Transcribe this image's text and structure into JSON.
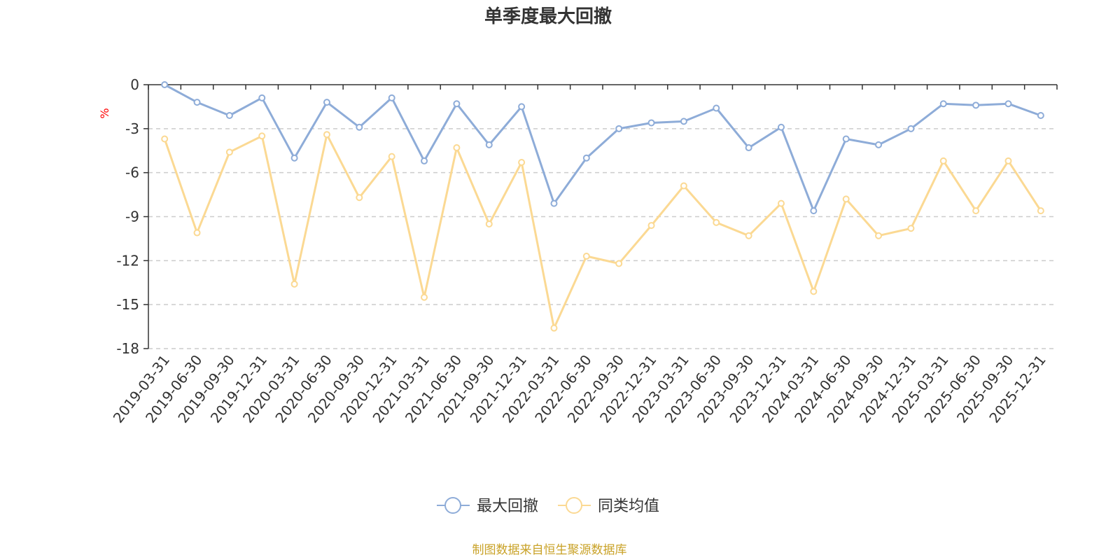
{
  "chart_data": {
    "type": "line",
    "title": "单季度最大回撤",
    "ylabel": "%",
    "xlabel": "",
    "ylim": [
      -18,
      0
    ],
    "yticks": [
      0,
      -3,
      -6,
      -9,
      -12,
      -15,
      -18
    ],
    "grid": true,
    "legend_position": "bottom-center",
    "categories": [
      "2019-03-31",
      "2019-06-30",
      "2019-09-30",
      "2019-12-31",
      "2020-03-31",
      "2020-06-30",
      "2020-09-30",
      "2020-12-31",
      "2021-03-31",
      "2021-06-30",
      "2021-09-30",
      "2021-12-31",
      "2022-03-31",
      "2022-06-30",
      "2022-09-30",
      "2022-12-31",
      "2023-03-31",
      "2023-06-30",
      "2023-09-30",
      "2023-12-31",
      "2024-03-31",
      "2024-06-30",
      "2024-09-30",
      "2024-12-31",
      "2025-03-31",
      "2025-06-30",
      "2025-09-30",
      "2025-12-31"
    ],
    "series": [
      {
        "name": "最大回撤",
        "color": "#8eacd8",
        "values": [
          0,
          -1.2,
          -2.1,
          -0.9,
          -5.0,
          -1.2,
          -2.9,
          -0.9,
          -5.2,
          -1.3,
          -4.1,
          -1.5,
          -8.1,
          -5.0,
          -3.0,
          -2.6,
          -2.5,
          -1.6,
          -4.3,
          -2.9,
          -8.6,
          -3.7,
          -4.1,
          -3.0,
          -1.3,
          -1.4,
          -1.3,
          -2.1
        ]
      },
      {
        "name": "同类均值",
        "color": "#fbd993",
        "values": [
          -3.7,
          -10.1,
          -4.6,
          -3.5,
          -13.6,
          -3.4,
          -7.7,
          -4.9,
          -14.5,
          -4.3,
          -9.5,
          -5.3,
          -16.6,
          -11.7,
          -12.2,
          -9.6,
          -6.9,
          -9.4,
          -10.3,
          -8.1,
          -14.1,
          -7.8,
          -10.3,
          -9.8,
          -5.2,
          -8.6,
          -5.2,
          -8.6
        ]
      }
    ]
  },
  "footer": {
    "source_text": "制图数据来自恒生聚源数据库"
  },
  "colors": {
    "axis": "#333333",
    "grid": "#cccccc",
    "unit_label": "#ff0000",
    "source_text": "#c9a227"
  }
}
